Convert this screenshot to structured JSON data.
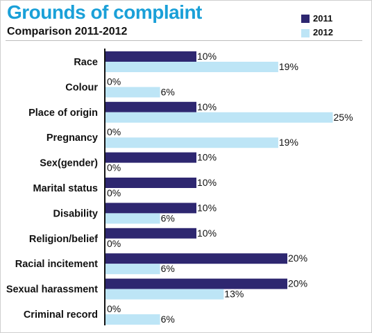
{
  "header": {
    "title": "Grounds of complaint",
    "subtitle": "Comparison 2011-2012"
  },
  "colors": {
    "series_2011": "#2e2770",
    "series_2012": "#bde5f6",
    "title": "#1aa0d8"
  },
  "chart_data": {
    "type": "bar",
    "orientation": "horizontal",
    "title": "Grounds of complaint",
    "subtitle": "Comparison 2011-2012",
    "categories": [
      "Race",
      "Colour",
      "Place of origin",
      "Pregnancy",
      "Sex(gender)",
      "Marital status",
      "Disability",
      "Religion/belief",
      "Racial incitement",
      "Sexual harassment",
      "Criminal record"
    ],
    "series": [
      {
        "name": "2011",
        "values": [
          10,
          0,
          10,
          0,
          10,
          10,
          10,
          10,
          20,
          20,
          0
        ],
        "labels": [
          "10%",
          "0%",
          "10%",
          "0%",
          "10%",
          "10%",
          "10%",
          "10%",
          "20%",
          "20%",
          "0%"
        ]
      },
      {
        "name": "2012",
        "values": [
          19,
          6,
          25,
          19,
          0,
          0,
          6,
          0,
          6,
          13,
          6
        ],
        "labels": [
          "19%",
          "6%",
          "25%",
          "19%",
          "0%",
          "0%",
          "6%",
          "0%",
          "6%",
          "13%",
          "6%"
        ]
      }
    ],
    "xlim": [
      0,
      25
    ],
    "legend": "top-right",
    "grid": false
  }
}
